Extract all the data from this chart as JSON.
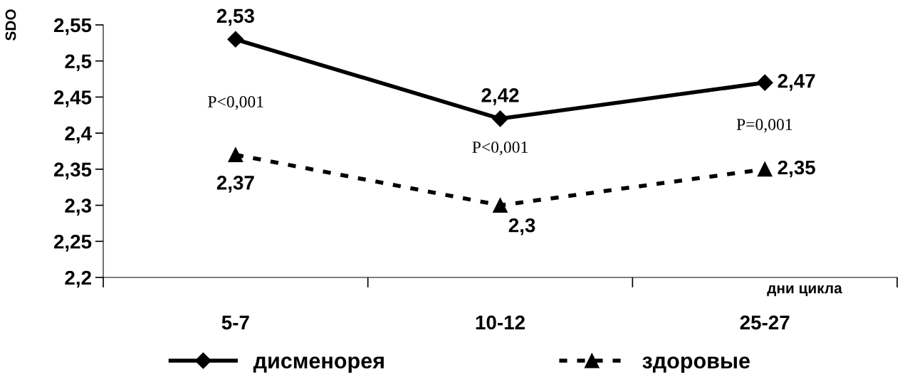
{
  "chart_data": {
    "type": "line",
    "ylabel": "SDO",
    "xlabel": "дни цикла",
    "categories": [
      "5-7",
      "10-12",
      "25-27"
    ],
    "series": [
      {
        "name": "дисменорея",
        "color": "#000000",
        "values": [
          2.53,
          2.42,
          2.47
        ],
        "marker": "diamond",
        "line_style": "solid",
        "value_labels": [
          "2,53",
          "2,42",
          "2,47"
        ]
      },
      {
        "name": "здоровые",
        "color": "#000000",
        "values": [
          2.37,
          2.3,
          2.35
        ],
        "marker": "triangle",
        "line_style": "dashed",
        "value_labels": [
          "2,37",
          "2,3",
          "2,35"
        ]
      }
    ],
    "ylim": [
      2.2,
      2.55
    ],
    "yticks": [
      {
        "value": 2.2,
        "label": "2,2"
      },
      {
        "value": 2.25,
        "label": "2,25"
      },
      {
        "value": 2.3,
        "label": "2,3"
      },
      {
        "value": 2.35,
        "label": "2,35"
      },
      {
        "value": 2.4,
        "label": "2,4"
      },
      {
        "value": 2.45,
        "label": "2,45"
      },
      {
        "value": 2.5,
        "label": "2,5"
      },
      {
        "value": 2.55,
        "label": "2,55"
      }
    ],
    "annotations": [
      "P<0,001",
      "P<0,001",
      "P=0,001"
    ],
    "grid": false,
    "legend": "bottom"
  }
}
